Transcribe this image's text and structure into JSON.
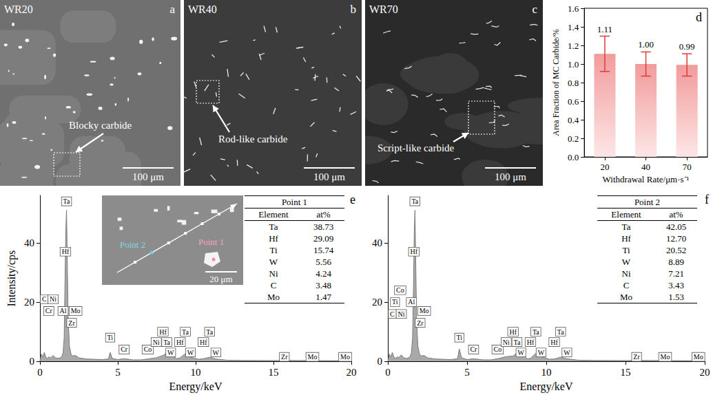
{
  "micrographs": [
    {
      "panel": "a",
      "label": "WR20",
      "annotation": "Blocky carbide",
      "scale_bar": "100 μm"
    },
    {
      "panel": "b",
      "label": "WR40",
      "annotation": "Rod-like carbide",
      "scale_bar": "100 μm"
    },
    {
      "panel": "c",
      "label": "WR70",
      "annotation": "Script-like carbide",
      "scale_bar": "100 μm"
    }
  ],
  "chart_data": [
    {
      "panel": "d",
      "type": "bar",
      "categories": [
        "20",
        "40",
        "70"
      ],
      "values": [
        1.11,
        1,
        0.99
      ],
      "value_labels": [
        "1.11",
        "1.00",
        "0.99"
      ],
      "errors": [
        0.19,
        0.13,
        0.12
      ],
      "data_labels": true,
      "color": "#f29b9b",
      "x_label": "Withdrawal Rate/μm·s⁻¹",
      "y_label": "Area Fraction of MC Carbide/%",
      "ylim": [
        0,
        1.6
      ],
      "yticks": [
        {
          "value": 0,
          "label": "0.0"
        },
        0.2,
        0.4,
        0.6,
        0.8,
        {
          "value": 1,
          "label": "1.0"
        },
        1.2,
        1.4,
        1.6
      ],
      "grid": false
    },
    {
      "panel": "e",
      "type": "area",
      "color": "#a9a9a9",
      "x_label": "Energy/keV",
      "y_label": "Intensity/cps",
      "x": [
        0,
        0.1,
        0.2,
        0.28,
        0.4,
        0.52,
        0.57,
        0.7,
        0.85,
        1,
        1.2,
        1.4,
        1.49,
        1.56,
        1.62,
        1.67,
        1.71,
        1.76,
        1.82,
        1.9,
        2,
        2.1,
        2.29,
        2.5,
        3,
        3.5,
        4,
        4.4,
        4.51,
        4.65,
        5,
        5.41,
        6,
        6.5,
        6.93,
        7.47,
        7.9,
        8.15,
        8.4,
        8.8,
        9,
        9.34,
        9.67,
        10.2,
        10.5,
        10.9,
        11.3,
        12,
        13,
        15,
        15.7,
        17.5,
        19.6,
        20
      ],
      "values": [
        0,
        2.5,
        1.5,
        3,
        1.2,
        1,
        1.5,
        1.2,
        2,
        1.2,
        1,
        1.5,
        3,
        8,
        30,
        45,
        51,
        34,
        14,
        5,
        2.5,
        1.8,
        2,
        1.2,
        0.8,
        0.7,
        0.6,
        0.8,
        3,
        1,
        0.6,
        0.9,
        0.5,
        0.5,
        0.8,
        1.2,
        2,
        2.8,
        1.8,
        0.9,
        1.2,
        2.6,
        1.4,
        0.7,
        0.9,
        1.4,
        0.8,
        0.4,
        0.3,
        0.25,
        0.3,
        0.25,
        0.2,
        0.2
      ],
      "xlim": [
        0,
        20
      ],
      "xticks": [
        0,
        5,
        10,
        15,
        20
      ],
      "ylim": [
        0,
        56
      ],
      "yticks": [
        0,
        20,
        40
      ],
      "grid": false,
      "annotations": [
        {
          "text": "Ta",
          "x": 1.71,
          "y": 54
        },
        {
          "text": "Hf",
          "x": 1.64,
          "y": 37
        },
        {
          "text": "C",
          "x": 0.28,
          "y": 21
        },
        {
          "text": "Ni",
          "x": 0.85,
          "y": 21
        },
        {
          "text": "Cr",
          "x": 0.57,
          "y": 17
        },
        {
          "text": "Al",
          "x": 1.49,
          "y": 17
        },
        {
          "text": "Zr",
          "x": 2.04,
          "y": 13
        },
        {
          "text": "Mo",
          "x": 2.29,
          "y": 17
        },
        {
          "text": "Ti",
          "x": 4.51,
          "y": 8
        },
        {
          "text": "Cr",
          "x": 5.41,
          "y": 4
        },
        {
          "text": "Co",
          "x": 6.93,
          "y": 4
        },
        {
          "text": "Ni",
          "x": 7.47,
          "y": 6.5
        },
        {
          "text": "Hf",
          "x": 7.9,
          "y": 10
        },
        {
          "text": "Ta",
          "x": 8.15,
          "y": 6.5
        },
        {
          "text": "W",
          "x": 8.4,
          "y": 3
        },
        {
          "text": "Hf",
          "x": 9,
          "y": 6.5
        },
        {
          "text": "Ta",
          "x": 9.34,
          "y": 10
        },
        {
          "text": "W",
          "x": 9.67,
          "y": 3
        },
        {
          "text": "Hf",
          "x": 10.5,
          "y": 6.5
        },
        {
          "text": "Ta",
          "x": 10.9,
          "y": 10
        },
        {
          "text": "W",
          "x": 11.3,
          "y": 3
        },
        {
          "text": "Zr",
          "x": 15.7,
          "y": 1.5
        },
        {
          "text": "Mo",
          "x": 17.5,
          "y": 1.5
        },
        {
          "text": "Mo",
          "x": 19.6,
          "y": 1.5
        }
      ],
      "inset": {
        "points": [
          "Point 2",
          "Point 1"
        ],
        "scale_bar": "20 μm"
      },
      "table": {
        "title": "Point 1",
        "columns": [
          "Element",
          "at%"
        ],
        "rows": [
          [
            "Ta",
            "38.73"
          ],
          [
            "Hf",
            "29.09"
          ],
          [
            "Ti",
            "15.74"
          ],
          [
            "W",
            "5.56"
          ],
          [
            "Ni",
            "4.24"
          ],
          [
            "C",
            "3.48"
          ],
          [
            "Mo",
            "1.47"
          ]
        ]
      }
    },
    {
      "panel": "f",
      "type": "area",
      "color": "#a9a9a9",
      "x_label": "Energy/keV",
      "x": [
        0,
        0.1,
        0.2,
        0.28,
        0.4,
        0.52,
        0.57,
        0.7,
        0.85,
        1,
        1.2,
        1.4,
        1.49,
        1.56,
        1.62,
        1.67,
        1.71,
        1.76,
        1.82,
        1.9,
        2,
        2.1,
        2.29,
        2.5,
        3,
        3.5,
        4,
        4.4,
        4.51,
        4.65,
        5,
        5.41,
        6,
        6.5,
        6.93,
        7.47,
        7.9,
        8.15,
        8.4,
        8.8,
        9,
        9.34,
        9.67,
        10.2,
        10.5,
        10.9,
        11.3,
        12,
        13,
        15,
        15.7,
        17.5,
        19.6,
        20
      ],
      "values": [
        0,
        2.5,
        1.5,
        3,
        1.3,
        1,
        1.5,
        1.3,
        2.2,
        1.2,
        1,
        1.5,
        3,
        8,
        26,
        44,
        51,
        34,
        13,
        5,
        2.5,
        1.8,
        2,
        1.2,
        0.8,
        0.7,
        0.6,
        0.9,
        4.2,
        1.2,
        0.6,
        0.9,
        0.5,
        0.5,
        0.9,
        1.6,
        1.8,
        2.8,
        2.4,
        0.9,
        1,
        2.7,
        1.6,
        0.7,
        0.8,
        1.4,
        0.9,
        0.4,
        0.3,
        0.25,
        0.3,
        0.25,
        0.2,
        0.2
      ],
      "xlim": [
        0,
        20
      ],
      "xticks": [
        0,
        5,
        10,
        15,
        20
      ],
      "ylim": [
        0,
        56
      ],
      "yticks": [
        0,
        20,
        40
      ],
      "grid": false,
      "annotations": [
        {
          "text": "Ta",
          "x": 1.71,
          "y": 54
        },
        {
          "text": "Hf",
          "x": 1.64,
          "y": 37
        },
        {
          "text": "C",
          "x": 0.28,
          "y": 16
        },
        {
          "text": "Ti",
          "x": 0.45,
          "y": 20
        },
        {
          "text": "Co",
          "x": 0.78,
          "y": 24
        },
        {
          "text": "Ni",
          "x": 0.85,
          "y": 16
        },
        {
          "text": "Al",
          "x": 1.49,
          "y": 20
        },
        {
          "text": "Zr",
          "x": 2.04,
          "y": 13
        },
        {
          "text": "Mo",
          "x": 2.29,
          "y": 17
        },
        {
          "text": "Ti",
          "x": 4.51,
          "y": 8
        },
        {
          "text": "Cr",
          "x": 5.41,
          "y": 4
        },
        {
          "text": "Co",
          "x": 6.93,
          "y": 4
        },
        {
          "text": "Ni",
          "x": 7.47,
          "y": 6.5
        },
        {
          "text": "Hf",
          "x": 7.9,
          "y": 10
        },
        {
          "text": "Ta",
          "x": 8.15,
          "y": 6.5
        },
        {
          "text": "W",
          "x": 8.4,
          "y": 3
        },
        {
          "text": "Hf",
          "x": 9,
          "y": 6.5
        },
        {
          "text": "Ta",
          "x": 9.34,
          "y": 10
        },
        {
          "text": "W",
          "x": 9.67,
          "y": 3
        },
        {
          "text": "Hf",
          "x": 10.5,
          "y": 6.5
        },
        {
          "text": "Ta",
          "x": 10.9,
          "y": 10
        },
        {
          "text": "W",
          "x": 11.3,
          "y": 3
        },
        {
          "text": "Zr",
          "x": 15.7,
          "y": 1.5
        },
        {
          "text": "Mo",
          "x": 17.5,
          "y": 1.5
        },
        {
          "text": "Mo",
          "x": 19.6,
          "y": 1.5
        }
      ],
      "table": {
        "title": "Point 2",
        "columns": [
          "Element",
          "at%"
        ],
        "rows": [
          [
            "Ta",
            "42.05"
          ],
          [
            "Hf",
            "12.70"
          ],
          [
            "Ti",
            "20.52"
          ],
          [
            "W",
            "8.89"
          ],
          [
            "Ni",
            "7.21"
          ],
          [
            "C",
            "3.43"
          ],
          [
            "Mo",
            "1.53"
          ]
        ]
      }
    }
  ]
}
